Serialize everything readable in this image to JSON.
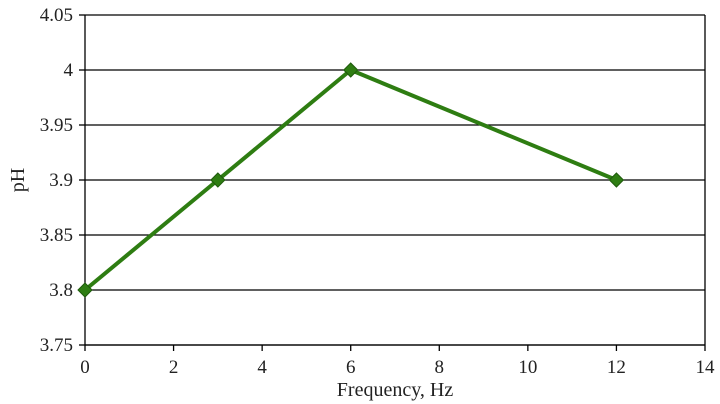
{
  "chart_data": {
    "type": "line",
    "title": "",
    "xlabel": "Frequency, Hz",
    "ylabel": "pH",
    "xlim": [
      0,
      14
    ],
    "ylim": [
      3.75,
      4.05
    ],
    "x_ticks": [
      "0",
      "2",
      "4",
      "6",
      "8",
      "10",
      "12",
      "14"
    ],
    "x_tick_values": [
      0,
      2,
      4,
      6,
      8,
      10,
      12,
      14
    ],
    "y_ticks": [
      "3.75",
      "3.8",
      "3.85",
      "3.9",
      "3.95",
      "4",
      "4.05"
    ],
    "y_tick_values": [
      3.75,
      3.8,
      3.85,
      3.9,
      3.95,
      4.0,
      4.05
    ],
    "grid": "horizontal",
    "legend": "none",
    "series": [
      {
        "color": "#2e7d12",
        "marker": "diamond",
        "x": [
          0,
          3,
          6,
          12
        ],
        "y": [
          3.8,
          3.9,
          4.0,
          3.9
        ]
      }
    ]
  }
}
